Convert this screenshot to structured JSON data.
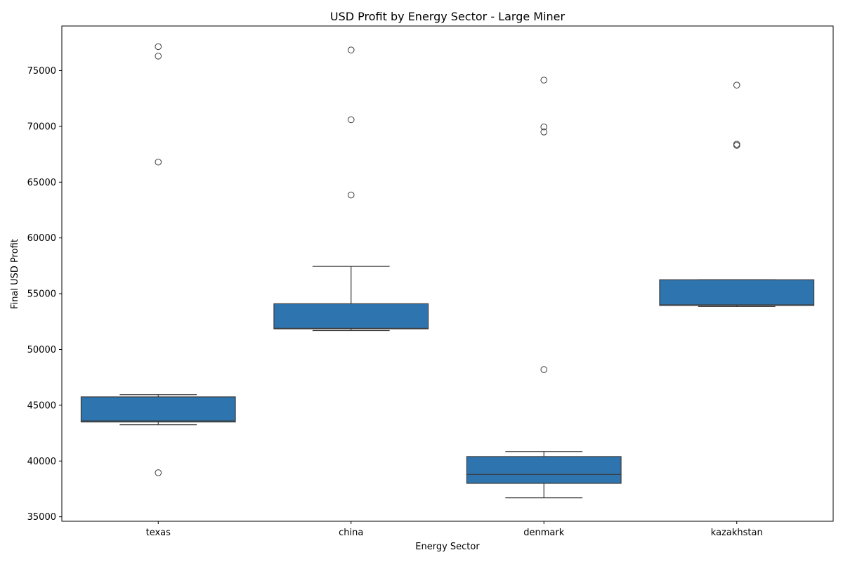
{
  "chart_data": {
    "type": "box",
    "title": "USD Profit by Energy Sector - Large Miner",
    "xlabel": "Energy Sector",
    "ylabel": "Final USD Profit",
    "ylim": [
      34600,
      79000
    ],
    "yticks": [
      35000,
      40000,
      45000,
      50000,
      55000,
      60000,
      65000,
      70000,
      75000
    ],
    "grid": false,
    "box_color": "#2e75b0",
    "line_color": "#3b3b3b",
    "categories": [
      "texas",
      "china",
      "denmark",
      "kazakhstan"
    ],
    "boxes": [
      {
        "category": "texas",
        "whisker_low": 43250,
        "q1": 43500,
        "median": 43600,
        "q3": 45750,
        "whisker_high": 45950,
        "outliers": [
          38950,
          66800,
          76300,
          77150
        ]
      },
      {
        "category": "china",
        "whisker_low": 51700,
        "q1": 51850,
        "median": 51900,
        "q3": 54100,
        "whisker_high": 57450,
        "outliers": [
          63850,
          70600,
          76850
        ]
      },
      {
        "category": "denmark",
        "whisker_low": 36700,
        "q1": 38000,
        "median": 38800,
        "q3": 40400,
        "whisker_high": 40850,
        "outliers": [
          48200,
          69500,
          69950,
          74150
        ]
      },
      {
        "category": "kazakhstan",
        "whisker_low": 53850,
        "q1": 53950,
        "median": 54000,
        "q3": 56250,
        "whisker_high": 56250,
        "outliers": [
          68300,
          68400,
          73700
        ]
      }
    ]
  }
}
